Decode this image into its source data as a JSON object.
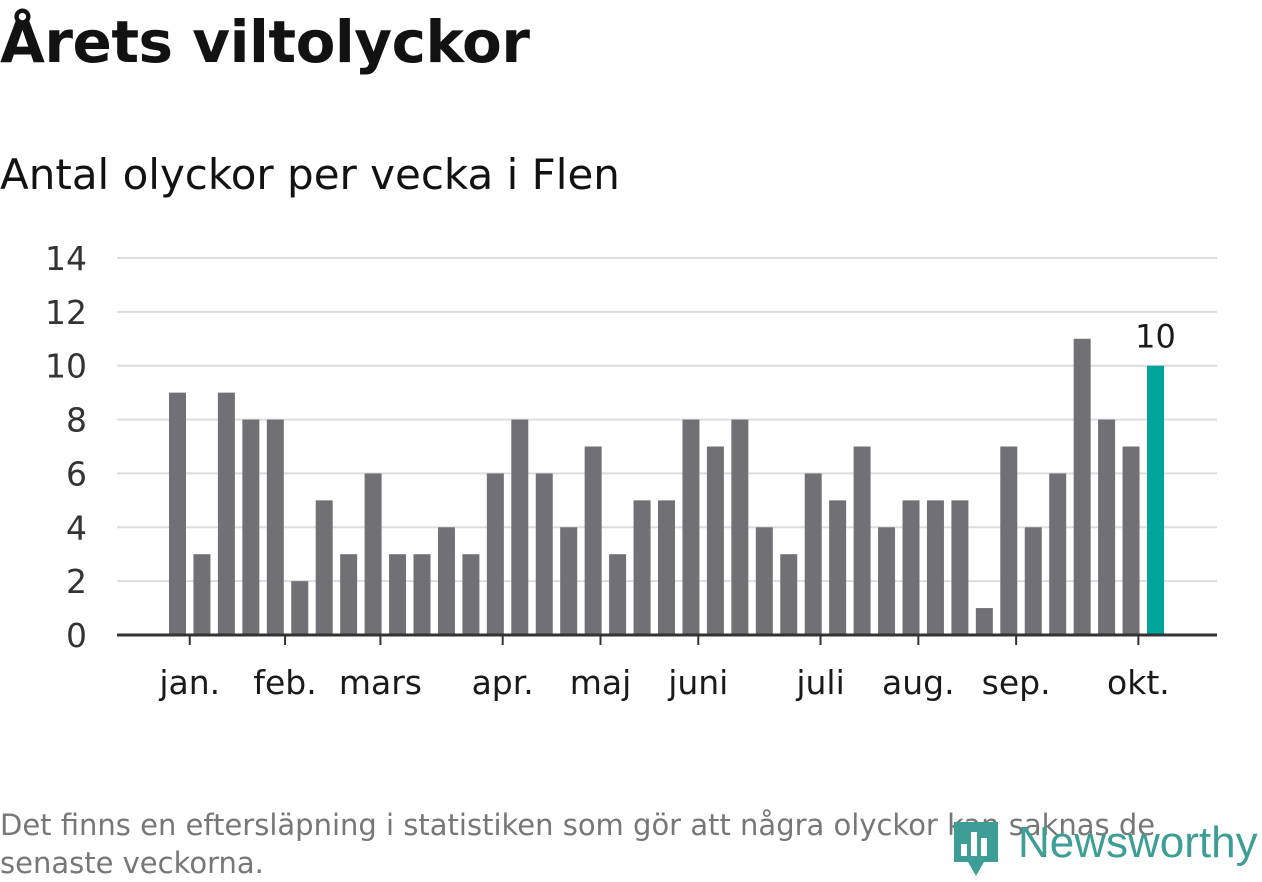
{
  "title": "Årets viltolyckor",
  "subtitle": "Antal olyckor per vecka i Flen",
  "footnote": "Det finns en eftersläpning i statistiken som gör att några olyckor kan saknas de senaste veckorna.",
  "logo": {
    "text": "Newsworthy",
    "icon": "bar-chart-pin-icon"
  },
  "colors": {
    "bar": "#717075",
    "highlight": "#00a49a",
    "grid": "#dddddd",
    "axis": "#333333"
  },
  "chart_data": {
    "type": "bar",
    "title": "Antal olyckor per vecka i Flen",
    "xlabel": "",
    "ylabel": "",
    "ylim": [
      0,
      14
    ],
    "yticks": [
      0,
      2,
      4,
      6,
      8,
      10,
      12,
      14
    ],
    "grid": true,
    "values": [
      9,
      3,
      9,
      8,
      8,
      2,
      5,
      3,
      6,
      3,
      3,
      4,
      3,
      6,
      8,
      6,
      4,
      7,
      3,
      5,
      5,
      8,
      7,
      8,
      4,
      3,
      6,
      5,
      7,
      4,
      5,
      5,
      5,
      1,
      7,
      4,
      6,
      11,
      8,
      7,
      10
    ],
    "highlight_index": 40,
    "data_labels": [
      {
        "index": 40,
        "text": "10"
      }
    ],
    "month_labels": [
      {
        "label": "jan.",
        "week_index": 0.5
      },
      {
        "label": "feb.",
        "week_index": 4.4
      },
      {
        "label": "mars",
        "week_index": 8.3
      },
      {
        "label": "apr.",
        "week_index": 13.3
      },
      {
        "label": "maj",
        "week_index": 17.3
      },
      {
        "label": "juni",
        "week_index": 21.3
      },
      {
        "label": "juli",
        "week_index": 26.3
      },
      {
        "label": "aug.",
        "week_index": 30.3
      },
      {
        "label": "sep.",
        "week_index": 34.3
      },
      {
        "label": "okt.",
        "week_index": 39.3
      }
    ]
  }
}
